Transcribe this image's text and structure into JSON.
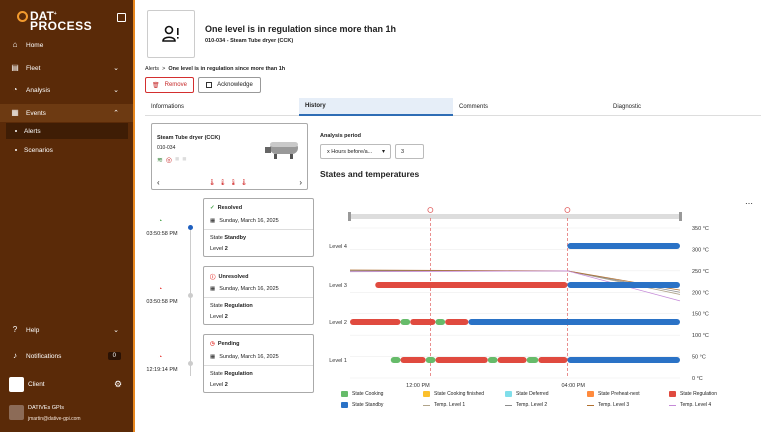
{
  "sidebar": {
    "logo_line1": "DAT",
    "logo_line2": "PROCESS",
    "items": [
      {
        "label": "Home",
        "icon": "home-icon"
      },
      {
        "label": "Fleet",
        "icon": "fleet-icon"
      },
      {
        "label": "Analysis",
        "icon": "analysis-icon"
      },
      {
        "label": "Events",
        "icon": "events-icon"
      }
    ],
    "sub_items": [
      {
        "label": "Alerts"
      },
      {
        "label": "Scenarios"
      }
    ],
    "help_label": "Help",
    "notifications_label": "Notifications",
    "notifications_count": "0",
    "client_label": "Client",
    "user_name": "DATIVEs GPIs",
    "user_email": "jmartin@dative-gpi.com"
  },
  "header": {
    "title": "One level is in regulation since more than 1h",
    "subtitle": "010-034 - Steam Tube dryer (CCK)"
  },
  "breadcrumb": {
    "root": "Alerts",
    "separator": ">",
    "current": "One level is in regulation since more than 1h"
  },
  "actions": {
    "remove_label": "Remove",
    "acknowledge_label": "Acknowledge"
  },
  "tabs": [
    {
      "label": "Informations"
    },
    {
      "label": "History"
    },
    {
      "label": "Comments"
    },
    {
      "label": "Diagnostic"
    }
  ],
  "equipment": {
    "name": "Steam Tube dryer (CCK)",
    "code": "010-034"
  },
  "analysis": {
    "period_label": "Analysis period",
    "period_value": "x Hours before/a...",
    "period_number": "3",
    "states_title": "States and temperatures"
  },
  "timeline": [
    {
      "time": "03:50:58 PM",
      "status": "Resolved",
      "date": "Sunday, March 16, 2025",
      "state_label": "State",
      "state": "Standby",
      "level_label": "Level",
      "level": "2",
      "color": "#43a047"
    },
    {
      "time": "03:50:58 PM",
      "status": "Unresolved",
      "date": "Sunday, March 16, 2025",
      "state_label": "State",
      "state": "Regulation",
      "level_label": "Level",
      "level": "2",
      "color": "#e53935"
    },
    {
      "time": "12:19:14 PM",
      "status": "Pending",
      "date": "Sunday, March 16, 2025",
      "state_label": "State",
      "state": "Regulation",
      "level_label": "Level",
      "level": "2",
      "color": "#e53935"
    }
  ],
  "colors": {
    "sidebar_bg": "#5a2a08",
    "accent": "#e8871e",
    "cooking": "#66bb6a",
    "cooking_finished": "#fbc02d",
    "deferred": "#80deea",
    "preheat_next": "#ff8a3d",
    "regulation": "#e04a3f",
    "standby": "#2a72c6"
  },
  "chart_data": {
    "type": "gantt-line",
    "levels": [
      "Level 1",
      "Level 2",
      "Level 3",
      "Level 4"
    ],
    "x_ticks": [
      "12:00 PM",
      "04:00 PM"
    ],
    "x_range_hours": [
      10.25,
      18.75
    ],
    "y_right_ticks": [
      "0 °C",
      "50 °C",
      "100 °C",
      "150 °C",
      "200 °C",
      "250 °C",
      "300 °C",
      "350 °C"
    ],
    "y_right_range": [
      0,
      350
    ],
    "alert_markers": [
      12.32,
      15.85
    ],
    "state_segments": [
      {
        "level": 4,
        "state": "standby",
        "start": 15.85,
        "end": 18.75
      },
      {
        "level": 3,
        "state": "regulation",
        "start": 10.9,
        "end": 15.85
      },
      {
        "level": 3,
        "state": "standby",
        "start": 15.85,
        "end": 18.75
      },
      {
        "level": 2,
        "state": "regulation",
        "start": 10.25,
        "end": 11.55
      },
      {
        "level": 2,
        "state": "cooking",
        "start": 11.55,
        "end": 11.8
      },
      {
        "level": 2,
        "state": "regulation",
        "start": 11.8,
        "end": 12.45
      },
      {
        "level": 2,
        "state": "cooking",
        "start": 12.45,
        "end": 12.7
      },
      {
        "level": 2,
        "state": "regulation",
        "start": 12.7,
        "end": 13.3
      },
      {
        "level": 2,
        "state": "standby",
        "start": 13.3,
        "end": 18.75
      },
      {
        "level": 1,
        "state": "cooking",
        "start": 11.3,
        "end": 11.55
      },
      {
        "level": 1,
        "state": "regulation",
        "start": 11.55,
        "end": 12.2
      },
      {
        "level": 1,
        "state": "cooking",
        "start": 12.2,
        "end": 12.45
      },
      {
        "level": 1,
        "state": "regulation",
        "start": 12.45,
        "end": 13.8
      },
      {
        "level": 1,
        "state": "cooking",
        "start": 13.8,
        "end": 14.05
      },
      {
        "level": 1,
        "state": "regulation",
        "start": 14.05,
        "end": 14.8
      },
      {
        "level": 1,
        "state": "cooking",
        "start": 14.8,
        "end": 15.1
      },
      {
        "level": 1,
        "state": "regulation",
        "start": 15.1,
        "end": 15.85
      },
      {
        "level": 1,
        "state": "standby",
        "start": 15.85,
        "end": 18.75
      }
    ],
    "temperature_series": [
      {
        "name": "Temp. Level 1",
        "color": "#b0a48a",
        "points": [
          [
            10.25,
            250
          ],
          [
            15.85,
            250
          ],
          [
            18.75,
            195
          ]
        ]
      },
      {
        "name": "Temp. Level 2",
        "color": "#8c8c8c",
        "points": [
          [
            10.25,
            250
          ],
          [
            15.85,
            250
          ],
          [
            18.75,
            200
          ]
        ]
      },
      {
        "name": "Temp. Level 3",
        "color": "#b07030",
        "points": [
          [
            10.25,
            252
          ],
          [
            15.85,
            250
          ],
          [
            18.75,
            205
          ]
        ]
      },
      {
        "name": "Temp. Level 4",
        "color": "#c58ad8",
        "points": [
          [
            10.25,
            248
          ],
          [
            15.85,
            250
          ],
          [
            18.75,
            180
          ]
        ]
      }
    ],
    "legend": [
      {
        "label": "State Cooking",
        "kind": "box",
        "color": "#66bb6a"
      },
      {
        "label": "State Cooking finished",
        "kind": "box",
        "color": "#fbc02d"
      },
      {
        "label": "State Deferred",
        "kind": "box",
        "color": "#80deea"
      },
      {
        "label": "State Preheat-next",
        "kind": "box",
        "color": "#ff8a3d"
      },
      {
        "label": "State Regulation",
        "kind": "box",
        "color": "#e04a3f"
      },
      {
        "label": "State Standby",
        "kind": "box",
        "color": "#2a72c6"
      },
      {
        "label": "Temp. Level 1",
        "kind": "line",
        "color": "#b0a48a"
      },
      {
        "label": "Temp. Level 2",
        "kind": "line",
        "color": "#8c8c8c"
      },
      {
        "label": "Temp. Level 3",
        "kind": "line",
        "color": "#b07030"
      },
      {
        "label": "Temp. Level 4",
        "kind": "line",
        "color": "#c58ad8"
      }
    ]
  }
}
